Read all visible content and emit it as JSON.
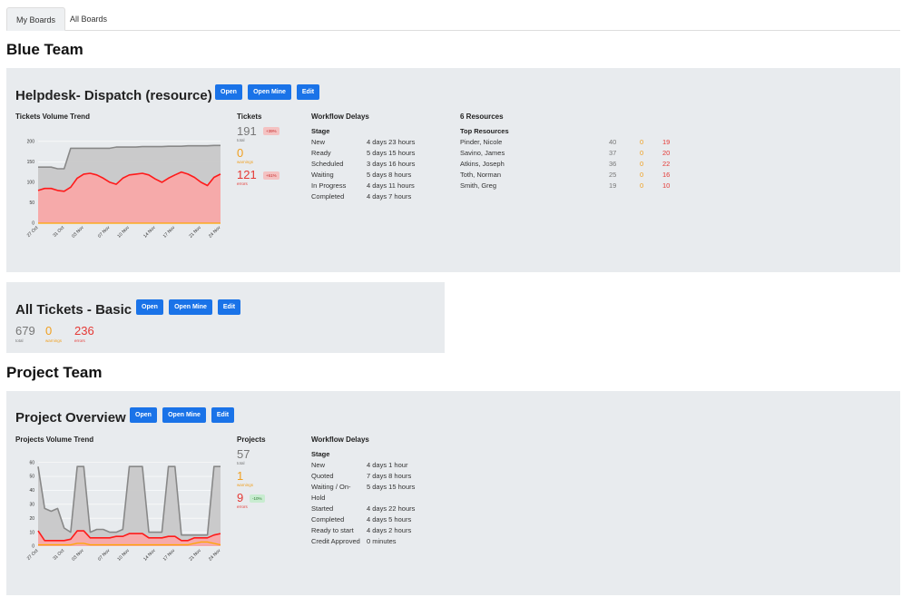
{
  "tabs": [
    {
      "label": "My Boards",
      "active": true
    },
    {
      "label": "All Boards",
      "active": false
    }
  ],
  "buttons": {
    "open": "Open",
    "open_mine": "Open Mine",
    "edit": "Edit"
  },
  "teams": [
    {
      "name": "Blue Team",
      "boards": [
        {
          "title": "Helpdesk- Dispatch (resource)",
          "chart_title": "Tickets Volume Trend",
          "stats": {
            "heading": "Tickets",
            "total": "191",
            "total_label": "total",
            "total_badge": "+39%",
            "warnings": "0",
            "warnings_label": "warnings",
            "errors": "121",
            "errors_label": "errors",
            "errors_badge": "+61%"
          },
          "workflow": {
            "heading": "Workflow Delays",
            "stage_heading": "Stage",
            "rows": [
              {
                "stage": "New",
                "delay": "4 days 23 hours"
              },
              {
                "stage": "Ready",
                "delay": "5 days 15 hours"
              },
              {
                "stage": "Scheduled",
                "delay": "3 days 16 hours"
              },
              {
                "stage": "Waiting",
                "delay": "5 days 8 hours"
              },
              {
                "stage": "In Progress",
                "delay": "4 days 11 hours"
              },
              {
                "stage": "Completed",
                "delay": "4 days 7 hours"
              }
            ]
          },
          "resources": {
            "heading": "6 Resources",
            "sub_heading": "Top Resources",
            "rows": [
              {
                "name": "Pinder, Nicole",
                "total": "40",
                "warnings": "0",
                "errors": "19"
              },
              {
                "name": "Savino, James",
                "total": "37",
                "warnings": "0",
                "errors": "20"
              },
              {
                "name": "Atkins, Joseph",
                "total": "36",
                "warnings": "0",
                "errors": "22"
              },
              {
                "name": "Toth, Norman",
                "total": "25",
                "warnings": "0",
                "errors": "16"
              },
              {
                "name": "Smith, Greg",
                "total": "19",
                "warnings": "0",
                "errors": "10"
              }
            ]
          }
        },
        {
          "title": "All Tickets - Basic",
          "stats": {
            "total": "679",
            "total_label": "total",
            "warnings": "0",
            "warnings_label": "warnings",
            "errors": "236",
            "errors_label": "errors"
          }
        }
      ]
    },
    {
      "name": "Project Team",
      "boards": [
        {
          "title": "Project Overview",
          "chart_title": "Projects Volume Trend",
          "stats": {
            "heading": "Projects",
            "total": "57",
            "total_label": "total",
            "warnings": "1",
            "warnings_label": "warnings",
            "errors": "9",
            "errors_label": "errors",
            "errors_badge": "-10%"
          },
          "workflow": {
            "heading": "Workflow Delays",
            "stage_heading": "Stage",
            "rows": [
              {
                "stage": "New",
                "delay": "4 days 1 hour"
              },
              {
                "stage": "Quoted",
                "delay": "7 days 8 hours"
              },
              {
                "stage": "Waiting / On-",
                "delay": "5 days 15 hours"
              },
              {
                "stage": "Hold",
                "delay": ""
              },
              {
                "stage": "Started",
                "delay": "4 days 22 hours"
              },
              {
                "stage": "Completed",
                "delay": "4 days 5 hours"
              },
              {
                "stage": "Ready to start",
                "delay": "4 days 2 hours"
              },
              {
                "stage": "Credit Approved",
                "delay": "0 minutes"
              }
            ]
          }
        }
      ]
    }
  ],
  "chart_data": [
    {
      "type": "area",
      "title": "Tickets Volume Trend",
      "x": [
        "27 Oct",
        "28 Oct",
        "29 Oct",
        "30 Oct",
        "31 Oct",
        "01 Nov",
        "02 Nov",
        "03 Nov",
        "04 Nov",
        "05 Nov",
        "06 Nov",
        "07 Nov",
        "08 Nov",
        "09 Nov",
        "10 Nov",
        "11 Nov",
        "12 Nov",
        "13 Nov",
        "14 Nov",
        "15 Nov",
        "16 Nov",
        "17 Nov",
        "18 Nov",
        "19 Nov",
        "20 Nov",
        "21 Nov",
        "22 Nov",
        "23 Nov",
        "24 Nov"
      ],
      "x_tick_labels": [
        "27 Oct",
        "31 Oct",
        "03 Nov",
        "07 Nov",
        "10 Nov",
        "14 Nov",
        "17 Nov",
        "21 Nov",
        "24 Nov"
      ],
      "yticks": [
        0,
        50,
        100,
        150,
        200
      ],
      "ylim": [
        0,
        215
      ],
      "grid": true,
      "colors": {
        "total": "#888888",
        "total_fill": "#c8c8c8",
        "errors": "#ff1a1a",
        "errors_fill": "#f8a8a8",
        "warnings": "#ffa500"
      },
      "series": [
        {
          "values": [
            137,
            137,
            137,
            133,
            133,
            183,
            183,
            183,
            183,
            183,
            183,
            183,
            186,
            186,
            186,
            186,
            187,
            187,
            187,
            187,
            188,
            188,
            188,
            189,
            189,
            189,
            189,
            190,
            190
          ]
        },
        {
          "values": [
            80,
            85,
            85,
            80,
            78,
            88,
            110,
            120,
            122,
            118,
            110,
            100,
            95,
            110,
            118,
            120,
            122,
            118,
            108,
            100,
            110,
            118,
            125,
            120,
            112,
            100,
            92,
            112,
            120
          ]
        },
        {
          "values": [
            0,
            0,
            0,
            0,
            0,
            0,
            0,
            0,
            0,
            0,
            0,
            0,
            0,
            0,
            0,
            0,
            0,
            0,
            0,
            0,
            0,
            0,
            0,
            0,
            0,
            0,
            0,
            0,
            0
          ]
        }
      ]
    },
    {
      "type": "area",
      "title": "Projects Volume Trend",
      "x": [
        "27 Oct",
        "28 Oct",
        "29 Oct",
        "30 Oct",
        "31 Oct",
        "01 Nov",
        "02 Nov",
        "03 Nov",
        "04 Nov",
        "05 Nov",
        "06 Nov",
        "07 Nov",
        "08 Nov",
        "09 Nov",
        "10 Nov",
        "11 Nov",
        "12 Nov",
        "13 Nov",
        "14 Nov",
        "15 Nov",
        "16 Nov",
        "17 Nov",
        "18 Nov",
        "19 Nov",
        "20 Nov",
        "21 Nov",
        "22 Nov",
        "23 Nov",
        "24 Nov"
      ],
      "x_tick_labels": [
        "27 Oct",
        "31 Oct",
        "03 Nov",
        "07 Nov",
        "10 Nov",
        "14 Nov",
        "17 Nov",
        "21 Nov",
        "24 Nov"
      ],
      "yticks": [
        0,
        10,
        20,
        30,
        40,
        50,
        60
      ],
      "ylim": [
        0,
        63
      ],
      "grid": true,
      "colors": {
        "total": "#888888",
        "total_fill": "#c8c8c8",
        "errors": "#ff1a1a",
        "errors_fill": "#f8a8a8",
        "warnings": "#ffa500"
      },
      "series": [
        {
          "values": [
            57,
            27,
            25,
            27,
            13,
            10,
            57,
            57,
            10,
            12,
            12,
            10,
            10,
            12,
            57,
            57,
            57,
            10,
            10,
            10,
            57,
            57,
            8,
            8,
            8,
            8,
            8,
            57,
            57
          ]
        },
        {
          "values": [
            11,
            4,
            4,
            4,
            4,
            5,
            11,
            11,
            6,
            6,
            6,
            6,
            7,
            7,
            9,
            9,
            9,
            6,
            6,
            6,
            7,
            7,
            4,
            4,
            6,
            6,
            6,
            8,
            9
          ]
        },
        {
          "values": [
            1,
            1,
            1,
            1,
            1,
            1,
            2,
            2,
            1,
            1,
            1,
            1,
            1,
            1,
            1,
            1,
            1,
            1,
            1,
            1,
            1,
            1,
            1,
            1,
            2,
            3,
            3,
            2,
            1
          ]
        }
      ]
    }
  ]
}
